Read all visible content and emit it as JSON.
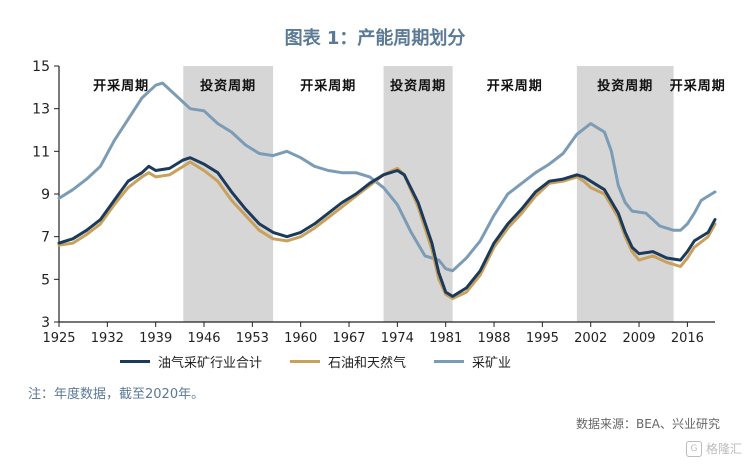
{
  "title": "图表 1：产能周期划分",
  "note": "注：年度数据，截至2020年。",
  "source": "数据来源：BEA、兴业研究",
  "watermark": "格隆汇",
  "chart_data": {
    "type": "line",
    "xlim": [
      1925,
      2020
    ],
    "ylim": [
      3,
      15
    ],
    "y_ticks": [
      3,
      5,
      7,
      9,
      11,
      13,
      15
    ],
    "x_ticks": [
      1925,
      1932,
      1939,
      1946,
      1953,
      1960,
      1967,
      1974,
      1981,
      1988,
      1995,
      2002,
      2009,
      2016
    ],
    "grid": false,
    "legend_position": "bottom",
    "shaded_periods": [
      {
        "label": "投资周期",
        "start": 1943,
        "end": 1956
      },
      {
        "label": "投资周期",
        "start": 1972,
        "end": 1982
      },
      {
        "label": "投资周期",
        "start": 2000,
        "end": 2014
      }
    ],
    "period_labels": [
      {
        "label": "开采周期",
        "center": 1934
      },
      {
        "label": "投资周期",
        "center": 1949.5
      },
      {
        "label": "开采周期",
        "center": 1964
      },
      {
        "label": "投资周期",
        "center": 1977
      },
      {
        "label": "开采周期",
        "center": 1991
      },
      {
        "label": "投资周期",
        "center": 2007
      },
      {
        "label": "开采周期",
        "center": 2017.5
      }
    ],
    "series": [
      {
        "name": "油气采矿行业合计",
        "color": "#1b3a5c",
        "points": [
          [
            1925,
            6.7
          ],
          [
            1927,
            6.9
          ],
          [
            1929,
            7.3
          ],
          [
            1931,
            7.8
          ],
          [
            1933,
            8.7
          ],
          [
            1935,
            9.6
          ],
          [
            1937,
            10.0
          ],
          [
            1938,
            10.3
          ],
          [
            1939,
            10.1
          ],
          [
            1941,
            10.2
          ],
          [
            1943,
            10.6
          ],
          [
            1944,
            10.7
          ],
          [
            1946,
            10.4
          ],
          [
            1948,
            10.0
          ],
          [
            1950,
            9.1
          ],
          [
            1952,
            8.3
          ],
          [
            1954,
            7.6
          ],
          [
            1956,
            7.2
          ],
          [
            1958,
            7.0
          ],
          [
            1960,
            7.2
          ],
          [
            1962,
            7.6
          ],
          [
            1964,
            8.1
          ],
          [
            1966,
            8.6
          ],
          [
            1968,
            9.0
          ],
          [
            1970,
            9.5
          ],
          [
            1972,
            9.9
          ],
          [
            1974,
            10.1
          ],
          [
            1975,
            9.9
          ],
          [
            1977,
            8.6
          ],
          [
            1979,
            6.7
          ],
          [
            1980,
            5.3
          ],
          [
            1981,
            4.4
          ],
          [
            1982,
            4.2
          ],
          [
            1984,
            4.6
          ],
          [
            1986,
            5.4
          ],
          [
            1988,
            6.7
          ],
          [
            1990,
            7.6
          ],
          [
            1992,
            8.3
          ],
          [
            1994,
            9.1
          ],
          [
            1996,
            9.6
          ],
          [
            1998,
            9.7
          ],
          [
            2000,
            9.9
          ],
          [
            2001,
            9.8
          ],
          [
            2002,
            9.6
          ],
          [
            2004,
            9.2
          ],
          [
            2006,
            8.1
          ],
          [
            2007,
            7.2
          ],
          [
            2008,
            6.5
          ],
          [
            2009,
            6.2
          ],
          [
            2011,
            6.3
          ],
          [
            2013,
            6.0
          ],
          [
            2015,
            5.9
          ],
          [
            2016,
            6.3
          ],
          [
            2017,
            6.8
          ],
          [
            2019,
            7.2
          ],
          [
            2020,
            7.8
          ]
        ]
      },
      {
        "name": "石油和天然气",
        "color": "#c8a15c",
        "points": [
          [
            1925,
            6.6
          ],
          [
            1927,
            6.7
          ],
          [
            1929,
            7.1
          ],
          [
            1931,
            7.6
          ],
          [
            1933,
            8.5
          ],
          [
            1935,
            9.3
          ],
          [
            1937,
            9.8
          ],
          [
            1938,
            10.0
          ],
          [
            1939,
            9.8
          ],
          [
            1941,
            9.9
          ],
          [
            1943,
            10.3
          ],
          [
            1944,
            10.5
          ],
          [
            1946,
            10.1
          ],
          [
            1948,
            9.6
          ],
          [
            1950,
            8.7
          ],
          [
            1952,
            8.0
          ],
          [
            1954,
            7.3
          ],
          [
            1956,
            6.9
          ],
          [
            1958,
            6.8
          ],
          [
            1960,
            7.0
          ],
          [
            1962,
            7.4
          ],
          [
            1964,
            7.9
          ],
          [
            1966,
            8.4
          ],
          [
            1968,
            8.9
          ],
          [
            1970,
            9.4
          ],
          [
            1972,
            9.9
          ],
          [
            1974,
            10.2
          ],
          [
            1975,
            9.9
          ],
          [
            1977,
            8.4
          ],
          [
            1979,
            6.4
          ],
          [
            1980,
            5.0
          ],
          [
            1981,
            4.3
          ],
          [
            1982,
            4.1
          ],
          [
            1984,
            4.4
          ],
          [
            1986,
            5.2
          ],
          [
            1988,
            6.5
          ],
          [
            1990,
            7.4
          ],
          [
            1992,
            8.1
          ],
          [
            1994,
            8.9
          ],
          [
            1996,
            9.5
          ],
          [
            1998,
            9.6
          ],
          [
            2000,
            9.8
          ],
          [
            2001,
            9.6
          ],
          [
            2002,
            9.3
          ],
          [
            2004,
            9.0
          ],
          [
            2006,
            7.9
          ],
          [
            2007,
            7.0
          ],
          [
            2008,
            6.3
          ],
          [
            2009,
            5.9
          ],
          [
            2011,
            6.1
          ],
          [
            2013,
            5.8
          ],
          [
            2015,
            5.6
          ],
          [
            2016,
            6.0
          ],
          [
            2017,
            6.5
          ],
          [
            2019,
            7.0
          ],
          [
            2020,
            7.6
          ]
        ]
      },
      {
        "name": "采矿业",
        "color": "#7c9cb5",
        "points": [
          [
            1925,
            8.8
          ],
          [
            1927,
            9.2
          ],
          [
            1929,
            9.7
          ],
          [
            1931,
            10.3
          ],
          [
            1933,
            11.5
          ],
          [
            1935,
            12.5
          ],
          [
            1937,
            13.5
          ],
          [
            1939,
            14.1
          ],
          [
            1940,
            14.2
          ],
          [
            1942,
            13.6
          ],
          [
            1944,
            13.0
          ],
          [
            1946,
            12.9
          ],
          [
            1948,
            12.3
          ],
          [
            1950,
            11.9
          ],
          [
            1952,
            11.3
          ],
          [
            1954,
            10.9
          ],
          [
            1956,
            10.8
          ],
          [
            1958,
            11.0
          ],
          [
            1960,
            10.7
          ],
          [
            1962,
            10.3
          ],
          [
            1964,
            10.1
          ],
          [
            1966,
            10.0
          ],
          [
            1968,
            10.0
          ],
          [
            1970,
            9.8
          ],
          [
            1972,
            9.3
          ],
          [
            1974,
            8.5
          ],
          [
            1976,
            7.2
          ],
          [
            1978,
            6.1
          ],
          [
            1980,
            5.9
          ],
          [
            1981,
            5.5
          ],
          [
            1982,
            5.4
          ],
          [
            1984,
            6.0
          ],
          [
            1986,
            6.8
          ],
          [
            1988,
            8.0
          ],
          [
            1990,
            9.0
          ],
          [
            1992,
            9.5
          ],
          [
            1994,
            10.0
          ],
          [
            1996,
            10.4
          ],
          [
            1998,
            10.9
          ],
          [
            2000,
            11.8
          ],
          [
            2002,
            12.3
          ],
          [
            2004,
            11.9
          ],
          [
            2005,
            11.0
          ],
          [
            2006,
            9.4
          ],
          [
            2007,
            8.6
          ],
          [
            2008,
            8.2
          ],
          [
            2010,
            8.1
          ],
          [
            2012,
            7.5
          ],
          [
            2014,
            7.3
          ],
          [
            2015,
            7.3
          ],
          [
            2016,
            7.6
          ],
          [
            2017,
            8.1
          ],
          [
            2018,
            8.7
          ],
          [
            2019,
            8.9
          ],
          [
            2020,
            9.1
          ]
        ]
      }
    ]
  }
}
